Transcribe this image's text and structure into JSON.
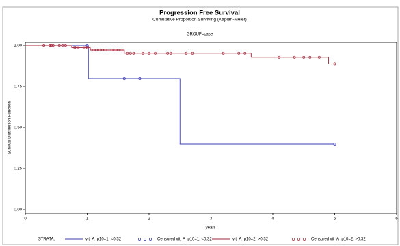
{
  "chart_data": {
    "type": "line",
    "title": "Progression Free Survival",
    "subtitle": "Cumulative Proportion Surviving (Kaplan-Meier)",
    "group_label": "GROUP=case",
    "y_label": "Survival Distribution Function",
    "x_label": "years",
    "legend_title": "STRATA:",
    "xlim": [
      0,
      6
    ],
    "xticks": [
      0,
      1,
      2,
      3,
      4,
      5,
      6
    ],
    "ylim": [
      0,
      1
    ],
    "yticks": [
      {
        "value": 0,
        "label": "0.00"
      },
      {
        "value": 0.25,
        "label": "0.25"
      },
      {
        "value": 0.5,
        "label": "0.50"
      },
      {
        "value": 0.75,
        "label": "0.75"
      },
      {
        "value": 1,
        "label": "1.00"
      }
    ],
    "series": [
      {
        "name": "vit_A_p10=1: <0.32",
        "color": "#3b3bb3",
        "kind": "line",
        "x": [
          0,
          1.02,
          1.02,
          2.5,
          2.5,
          5.0
        ],
        "values": [
          1,
          1,
          0.8,
          0.8,
          0.4,
          0.4
        ]
      },
      {
        "name": "Censored vit_A_p10=1: <0.32",
        "color": "#3b3bb3",
        "kind": "marker",
        "x": [
          1.0,
          1.6,
          1.85,
          5.0
        ],
        "values": [
          1,
          0.8,
          0.8,
          0.4
        ]
      },
      {
        "name": "vit_A_p10=2: >0.32",
        "color": "#a3243a",
        "kind": "line",
        "x": [
          0,
          0.75,
          0.75,
          1.05,
          1.05,
          1.6,
          1.6,
          3.65,
          3.65,
          4.9,
          4.9,
          5.0
        ],
        "values": [
          1,
          1,
          0.99,
          0.99,
          0.975,
          0.975,
          0.955,
          0.955,
          0.93,
          0.93,
          0.89,
          0.89
        ]
      },
      {
        "name": "Censored vit_A_p10=2: >0.32",
        "color": "#a3243a",
        "kind": "marker",
        "x": [
          0.3,
          0.4,
          0.42,
          0.45,
          0.55,
          0.6,
          0.65,
          0.8,
          0.85,
          0.95,
          1.0,
          1.1,
          1.15,
          1.2,
          1.25,
          1.3,
          1.4,
          1.45,
          1.5,
          1.55,
          1.65,
          1.7,
          1.75,
          1.9,
          2.0,
          2.1,
          2.3,
          2.35,
          2.6,
          2.7,
          3.2,
          3.45,
          3.55,
          4.1,
          4.35,
          4.5,
          4.6,
          4.75,
          5.0
        ],
        "values": [
          1,
          1,
          1,
          1,
          1,
          1,
          1,
          0.99,
          0.99,
          0.99,
          0.99,
          0.975,
          0.975,
          0.975,
          0.975,
          0.975,
          0.975,
          0.975,
          0.975,
          0.975,
          0.955,
          0.955,
          0.955,
          0.955,
          0.955,
          0.955,
          0.955,
          0.955,
          0.955,
          0.955,
          0.955,
          0.955,
          0.955,
          0.93,
          0.93,
          0.93,
          0.93,
          0.93,
          0.89
        ]
      }
    ]
  }
}
